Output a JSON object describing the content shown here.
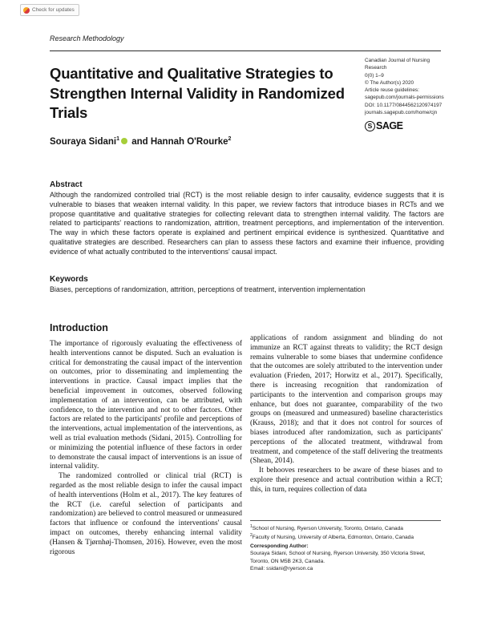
{
  "badge": {
    "label": "Check for updates"
  },
  "header": {
    "section_label": "Research Methodology",
    "journal_info": {
      "lines": [
        "Canadian Journal of Nursing",
        "Research",
        "0(0) 1–9",
        "© The Author(s) 2020",
        "Article reuse guidelines:",
        "sagepub.com/journals-permissions",
        "DOI: 10.1177/0844562120974197",
        "journals.sagepub.com/home/cjn"
      ],
      "logo_mark": "S",
      "publisher": "SAGE"
    }
  },
  "article": {
    "title": "Quantitative and Qualitative Strategies to Strengthen Internal Validity in Randomized Trials",
    "authors": {
      "author1": "Souraya Sidani",
      "author1_sup": "1",
      "connector": "and",
      "author2": "Hannah O'Rourke",
      "author2_sup": "2"
    },
    "abstract": {
      "heading": "Abstract",
      "text": "Although the randomized controlled trial (RCT) is the most reliable design to infer causality, evidence suggests that it is vulnerable to biases that weaken internal validity. In this paper, we review factors that introduce biases in RCTs and we propose quantitative and qualitative strategies for collecting relevant data to strengthen internal validity. The factors are related to participants' reactions to randomization, attrition, treatment perceptions, and implementation of the intervention. The way in which these factors operate is explained and pertinent empirical evidence is synthesized. Quantitative and qualitative strategies are described. Researchers can plan to assess these factors and examine their influence, providing evidence of what actually contributed to the interventions' causal impact."
    },
    "keywords": {
      "heading": "Keywords",
      "text": "Biases, perceptions of randomization, attrition, perceptions of treatment, intervention implementation"
    },
    "introduction": {
      "heading": "Introduction",
      "left_p1": "The importance of rigorously evaluating the effectiveness of health interventions cannot be disputed. Such an evaluation is critical for demonstrating the causal impact of the intervention on outcomes, prior to disseminating and implementing the interventions in practice. Causal impact implies that the beneficial improvement in outcomes, observed following implementation of an intervention, can be attributed, with confidence, to the intervention and not to other factors. Other factors are related to the participants' profile and perceptions of the interventions, actual implementation of the interventions, as well as trial evaluation methods (Sidani, 2015). Controlling for or minimizing the potential influence of these factors in order to demonstrate the causal impact of interventions is an issue of internal validity.",
      "left_p2": "The randomized controlled or clinical trial (RCT) is regarded as the most reliable design to infer the causal impact of health interventions (Holm et al., 2017). The key features of the RCT (i.e. careful selection of participants and randomization) are believed to control measured or unmeasured factors that influence or confound the interventions' causal impact on outcomes, thereby enhancing internal validity (Hansen & Tjørnhøj-Thomsen, 2016). However, even the most rigorous",
      "right_p1": "applications of random assignment and blinding do not immunize an RCT against threats to validity; the RCT design remains vulnerable to some biases that undermine confidence that the outcomes are solely attributed to the intervention under evaluation (Frieden, 2017; Horwitz et al., 2017). Specifically, there is increasing recognition that randomization of participants to the intervention and comparison groups may enhance, but does not guarantee, comparability of the two groups on (measured and unmeasured) baseline characteristics (Krauss, 2018); and that it does not control for sources of biases introduced after randomization, such as participants' perceptions of the allocated treatment, withdrawal from treatment, and competence of the staff delivering the treatments (Shean, 2014).",
      "right_p2": "It behooves researchers to be aware of these biases and to explore their presence and actual contribution within a RCT; this, in turn, requires collection of data"
    },
    "footnotes": {
      "affil1_sup": "1",
      "affil1": "School of Nursing, Ryerson University, Toronto, Ontario, Canada",
      "affil2_sup": "2",
      "affil2": "Faculty of Nursing, University of Alberta, Edmonton, Ontario, Canada",
      "corresponding_heading": "Corresponding Author:",
      "corresponding_text": "Souraya Sidani, School of Nursing, Ryerson University, 350 Victoria Street, Toronto, ON M5B 2K3, Canada.",
      "email_label": "Email: ",
      "email": "ssidani@ryerson.ca"
    }
  }
}
